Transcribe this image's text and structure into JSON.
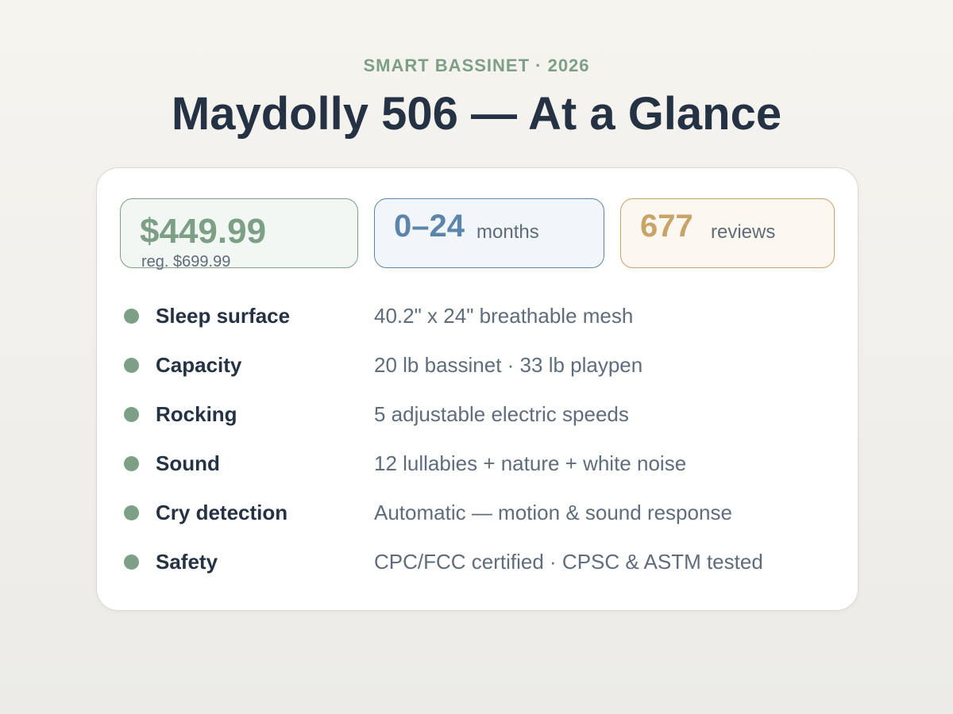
{
  "header": {
    "eyebrow": "SMART BASSINET · 2026",
    "title": "Maydolly 506 — At a Glance"
  },
  "stats": {
    "price": "$449.99",
    "regular_price": "reg. $699.99",
    "age_range": "0–24",
    "age_unit": "months",
    "review_count": "677",
    "review_unit": "reviews"
  },
  "specs": [
    {
      "label": "Sleep surface",
      "value": "40.2\" x 24\" breathable mesh"
    },
    {
      "label": "Capacity",
      "value": "20 lb bassinet · 33 lb playpen"
    },
    {
      "label": "Rocking",
      "value": "5 adjustable electric speeds"
    },
    {
      "label": "Sound",
      "value": "12 lullabies + nature + white noise"
    },
    {
      "label": "Cry detection",
      "value": "Automatic — motion & sound response"
    },
    {
      "label": "Safety",
      "value": "CPC/FCC certified · CPSC & ASTM tested"
    }
  ],
  "colors": {
    "accent_green": "#7c9f86",
    "accent_blue": "#5b85ab",
    "accent_gold": "#c9a46a",
    "title_text": "#253244",
    "body_text": "#5f6c7b"
  }
}
